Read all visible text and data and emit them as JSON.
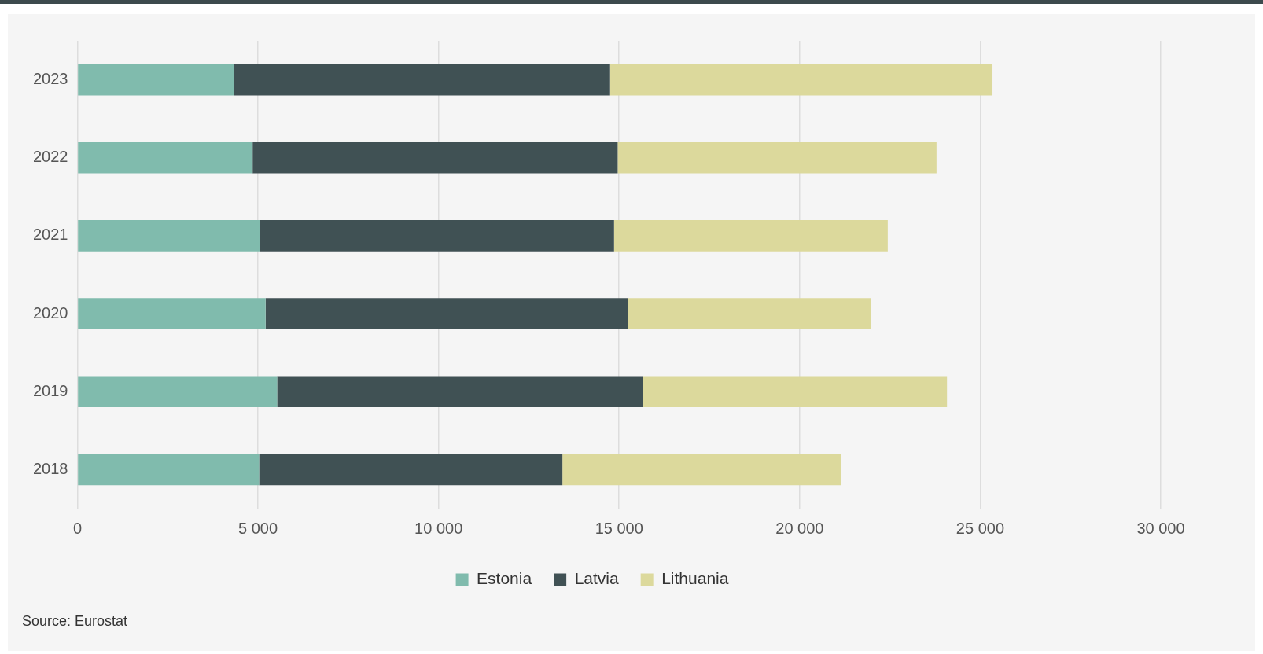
{
  "chart_data": {
    "type": "bar",
    "orientation": "horizontal",
    "stacked": true,
    "categories": [
      "2023",
      "2022",
      "2021",
      "2020",
      "2019",
      "2018"
    ],
    "series": [
      {
        "name": "Estonia",
        "color": "#80bbad",
        "values": [
          4330,
          4850,
          5050,
          5210,
          5530,
          5030
        ]
      },
      {
        "name": "Latvia",
        "color": "#405154",
        "values": [
          10420,
          10110,
          9810,
          10040,
          10130,
          8400
        ]
      },
      {
        "name": "Lithuania",
        "color": "#dcd99c",
        "values": [
          10590,
          8830,
          7580,
          6720,
          8420,
          7720
        ]
      }
    ],
    "xlim": [
      0,
      30000
    ],
    "xticks": [
      0,
      {
        "value": 5000,
        "label": "5 000"
      },
      {
        "value": 10000,
        "label": "10 000"
      },
      {
        "value": 15000,
        "label": "15 000"
      },
      {
        "value": 20000,
        "label": "20 000"
      },
      {
        "value": 25000,
        "label": "25 000"
      },
      {
        "value": 30000,
        "label": "30 000"
      }
    ],
    "grid": "x",
    "legend": "bottom",
    "annotations": [
      "Source: Eurostat"
    ]
  }
}
